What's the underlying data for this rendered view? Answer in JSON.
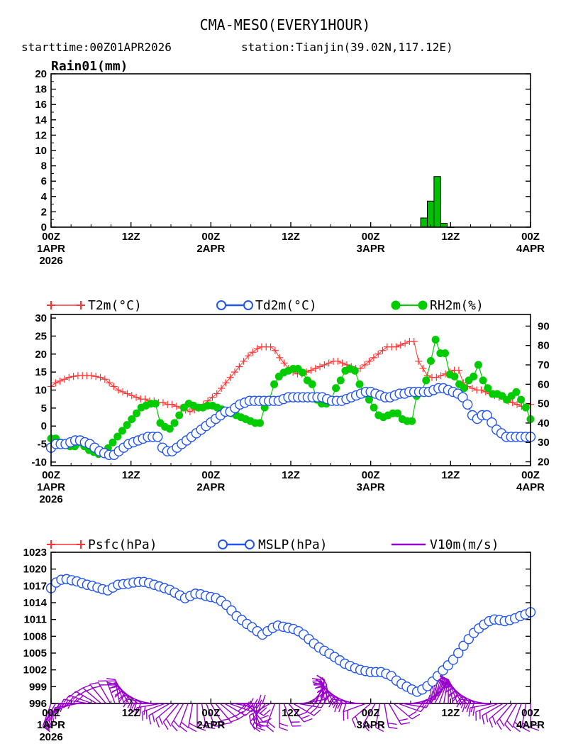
{
  "header": {
    "title": "CMA-MESO(EVERY1HOUR)",
    "starttime": "starttime:00Z01APR2026",
    "station": "station:Tianjin(39.02N,117.12E)"
  },
  "time_axis": {
    "ticks": [
      {
        "line1": "00Z",
        "line2": "1APR",
        "line3": "2026"
      },
      {
        "line1": "12Z",
        "line2": "",
        "line3": ""
      },
      {
        "line1": "00Z",
        "line2": "2APR",
        "line3": ""
      },
      {
        "line1": "12Z",
        "line2": "",
        "line3": ""
      },
      {
        "line1": "00Z",
        "line2": "3APR",
        "line3": ""
      },
      {
        "line1": "12Z",
        "line2": "",
        "line3": ""
      },
      {
        "line1": "00Z",
        "line2": "4APR",
        "line3": ""
      }
    ],
    "hours": [
      0,
      12,
      24,
      36,
      48,
      60,
      72
    ]
  },
  "colors": {
    "rain": "#00c000",
    "t2m": "#ff3333",
    "td2m": "#2255ee",
    "rh2m": "#00cc00",
    "psfc": "#ff3333",
    "mslp": "#2255ee",
    "wind": "#9900cc"
  },
  "chart_data": [
    {
      "type": "bar",
      "ylabel_text": "Rain01(mm)",
      "ylim": [
        0,
        20
      ],
      "yticks": [
        "0",
        "2",
        "4",
        "6",
        "8",
        "10",
        "12",
        "14",
        "16",
        "18",
        "20"
      ],
      "x_hours": [
        56,
        57,
        58,
        59,
        60
      ],
      "values": [
        1.2,
        3.4,
        6.6,
        0.5,
        0.0
      ]
    },
    {
      "type": "line",
      "ylim_left": [
        -11,
        31
      ],
      "yticks_left": [
        "-10",
        "-5",
        "0",
        "5",
        "10",
        "15",
        "20",
        "25",
        "30"
      ],
      "ylim_right": [
        18,
        96
      ],
      "yticks_right": [
        "20",
        "30",
        "40",
        "50",
        "60",
        "70",
        "80",
        "90"
      ],
      "series": [
        {
          "name": "T2m(°C)",
          "axis": "left",
          "values": [
            11,
            12,
            12.5,
            13,
            13.5,
            13.8,
            14,
            14,
            14,
            14,
            13.8,
            13.5,
            13,
            12,
            11,
            10,
            9.5,
            9,
            8.5,
            8,
            7.5,
            7.5,
            7,
            7,
            6.5,
            6.5,
            6,
            6,
            5.5,
            5,
            4.5,
            4,
            4.5,
            5,
            6,
            7,
            8,
            9,
            10.5,
            12,
            13.5,
            15,
            16.5,
            18,
            19.5,
            20.5,
            21.5,
            22,
            22,
            22,
            21,
            19,
            17.5,
            16,
            15,
            14.5,
            14.5,
            15,
            15.5,
            16,
            16.5,
            17,
            17.5,
            18,
            18,
            17.5,
            17,
            16.5,
            16,
            16,
            17,
            18,
            19,
            20,
            21,
            22,
            22,
            22,
            22.5,
            23,
            23.5,
            23.5,
            18,
            16,
            14,
            13.5,
            13.5,
            14,
            14.5,
            15,
            15.5,
            15.5,
            12,
            11,
            10.5,
            10,
            10,
            9.5,
            9,
            8.5,
            8,
            7.5,
            7,
            6.5,
            6,
            5.5,
            5.5,
            6
          ]
        },
        {
          "name": "Td2m(°C)",
          "axis": "left",
          "values": [
            -6,
            -5,
            -5,
            -5,
            -4.5,
            -4,
            -4,
            -4.5,
            -5,
            -6,
            -7,
            -7.5,
            -8,
            -8,
            -7,
            -6,
            -5,
            -4.5,
            -4,
            -3.5,
            -3,
            -3,
            -3,
            -6,
            -7,
            -7,
            -6,
            -5,
            -4,
            -3,
            -2,
            -1,
            0,
            1,
            2,
            3,
            4,
            4,
            5,
            6,
            6.5,
            7,
            7,
            7,
            7,
            7,
            7,
            7,
            7.5,
            8,
            8,
            8,
            8,
            8,
            8,
            8,
            8,
            7.5,
            7,
            7,
            7,
            7.5,
            8,
            8.5,
            9,
            9.5,
            9.5,
            9,
            8.5,
            8,
            8,
            8.5,
            9,
            9,
            9.5,
            9.5,
            9.5,
            9.5,
            9.5,
            10,
            10.5,
            10.5,
            10,
            9.5,
            9,
            8,
            6,
            3,
            2,
            3,
            3,
            1,
            -1,
            -2,
            -3,
            -3,
            -3,
            -3,
            -3,
            -3
          ]
        },
        {
          "name": "RH2m(%)",
          "axis": "right",
          "values": [
            32,
            32,
            30,
            29,
            28,
            28,
            30,
            28,
            26,
            25,
            24,
            25,
            27,
            30,
            33,
            36,
            39,
            42,
            45,
            48,
            49,
            50,
            50,
            40,
            38,
            37,
            40,
            44,
            48,
            50,
            49,
            48,
            48,
            49,
            49,
            48,
            47,
            46,
            45,
            44,
            43,
            42,
            41,
            40,
            40,
            48,
            52,
            60,
            64,
            66,
            67,
            68,
            68,
            66,
            62,
            60,
            52,
            50,
            50,
            52,
            58,
            62,
            67,
            68,
            67,
            60,
            55,
            52,
            48,
            44,
            43,
            44,
            45,
            45,
            42,
            41,
            41,
            54,
            56,
            62,
            72,
            83,
            76,
            76,
            65,
            64,
            60,
            58,
            62,
            64,
            70,
            62,
            58,
            55,
            55,
            54,
            52,
            54,
            56,
            52,
            48,
            42
          ]
        }
      ]
    },
    {
      "type": "line",
      "ylim": [
        996,
        1023
      ],
      "yticks": [
        "996",
        "999",
        "1002",
        "1005",
        "1008",
        "1011",
        "1014",
        "1017",
        "1020",
        "1023"
      ],
      "series": [
        {
          "name": "Psfc(hPa)",
          "values": [
            1016.3,
            1017.3,
            1017.8,
            1017.9,
            1017.7,
            1017.5,
            1017.2,
            1016.9,
            1016.7,
            1016.4,
            1016.1,
            1015.9,
            1016.4,
            1016.9,
            1017.0,
            1017.1,
            1017.3,
            1017.4,
            1017.4,
            1017.2,
            1016.9,
            1016.6,
            1016.3,
            1016.0,
            1015.5,
            1015.0,
            1014.5,
            1014.9,
            1015.3,
            1015.2,
            1014.9,
            1014.7,
            1014.5,
            1014.0,
            1013.3,
            1012.3,
            1011.3,
            1010.6,
            1009.9,
            1009.3,
            1008.6,
            1008.0,
            1008.6,
            1009.2,
            1009.6,
            1009.4,
            1009.2,
            1009.0,
            1008.6,
            1008.0,
            1007.2,
            1006.4,
            1005.7,
            1005.1,
            1004.6,
            1004.0,
            1003.4,
            1002.8,
            1002.4,
            1002.0,
            1001.7,
            1001.5,
            1001.3,
            1001.3,
            1001.3,
            1001.0,
            1000.6,
            999.8,
            999.2,
            998.7,
            998.2,
            997.8,
            998.2,
            998.8,
            999.6,
            1000.6,
            1001.6,
            1002.5,
            1003.5,
            1004.7,
            1006.0,
            1007.2,
            1008.3,
            1009.1,
            1009.8,
            1010.4,
            1010.7,
            1010.6,
            1010.4,
            1010.6,
            1010.9,
            1011.3,
            1011.6,
            1012.0
          ]
        },
        {
          "name": "MSLP(hPa)",
          "values": [
            1016.6,
            1017.6,
            1018.1,
            1018.2,
            1018.0,
            1017.8,
            1017.5,
            1017.2,
            1017.0,
            1016.7,
            1016.4,
            1016.2,
            1016.7,
            1017.2,
            1017.3,
            1017.4,
            1017.6,
            1017.7,
            1017.7,
            1017.5,
            1017.2,
            1016.9,
            1016.6,
            1016.3,
            1015.8,
            1015.3,
            1014.8,
            1015.2,
            1015.6,
            1015.5,
            1015.2,
            1015.0,
            1014.8,
            1014.3,
            1013.6,
            1012.6,
            1011.6,
            1010.9,
            1010.2,
            1009.6,
            1008.9,
            1008.3,
            1008.9,
            1009.5,
            1009.9,
            1009.7,
            1009.5,
            1009.3,
            1008.9,
            1008.3,
            1007.5,
            1006.7,
            1006.0,
            1005.4,
            1004.9,
            1004.3,
            1003.7,
            1003.1,
            1002.7,
            1002.3,
            1002.0,
            1001.8,
            1001.6,
            1001.6,
            1001.6,
            1001.3,
            1000.9,
            1000.1,
            999.5,
            999.0,
            998.5,
            998.1,
            998.5,
            999.1,
            999.9,
            1000.9,
            1001.9,
            1002.8,
            1003.8,
            1005.0,
            1006.3,
            1007.5,
            1008.6,
            1009.4,
            1010.1,
            1010.7,
            1011.0,
            1010.9,
            1010.7,
            1010.9,
            1011.2,
            1011.6,
            1011.9,
            1012.3
          ]
        },
        {
          "name": "V10m(m/s)",
          "kind": "wind-barbs",
          "direction_deg": [
            200,
            210,
            220,
            230,
            240,
            250,
            260,
            270,
            280,
            290,
            300,
            310,
            320,
            330,
            340,
            350,
            340,
            330,
            320,
            310,
            300,
            290,
            280,
            270,
            260,
            250,
            240,
            230,
            220,
            210,
            200,
            190,
            180,
            170,
            160,
            150,
            140,
            130,
            120,
            110,
            100,
            90,
            120,
            140,
            160,
            180,
            200,
            220,
            240,
            200,
            180,
            160,
            140,
            120,
            100,
            80,
            60,
            40,
            20,
            10,
            350,
            340,
            330,
            320,
            310,
            300,
            290,
            280,
            270,
            250,
            230,
            210,
            190,
            170,
            150,
            130,
            110,
            100,
            90,
            80,
            70,
            60,
            50,
            40,
            30,
            20,
            10,
            0,
            350,
            340,
            330,
            320,
            310,
            300,
            290,
            280,
            270,
            260,
            250,
            240,
            230,
            220,
            210,
            200,
            190,
            180
          ],
          "speed": [
            6,
            6,
            7,
            7,
            8,
            8,
            9,
            9,
            10,
            10,
            10,
            9,
            9,
            8,
            8,
            7,
            7,
            7,
            8,
            8,
            9,
            9,
            10,
            10,
            10,
            9,
            9,
            8,
            8,
            8,
            7,
            7,
            7,
            8,
            8,
            9,
            9,
            9,
            10,
            10,
            10,
            9,
            9,
            8,
            8,
            7,
            7,
            7,
            8,
            8,
            9,
            9,
            10,
            10,
            10,
            9,
            9,
            8,
            8,
            7,
            7,
            7,
            8,
            8,
            9,
            9,
            10,
            10,
            10,
            9,
            9,
            8,
            8,
            7,
            7,
            7,
            8,
            8,
            9,
            9,
            10,
            10,
            10,
            9,
            9,
            8,
            8,
            7,
            7,
            7,
            8,
            8,
            9,
            9,
            10,
            10,
            10,
            9,
            9,
            8,
            8,
            7,
            7,
            7,
            8,
            8
          ]
        }
      ]
    }
  ]
}
